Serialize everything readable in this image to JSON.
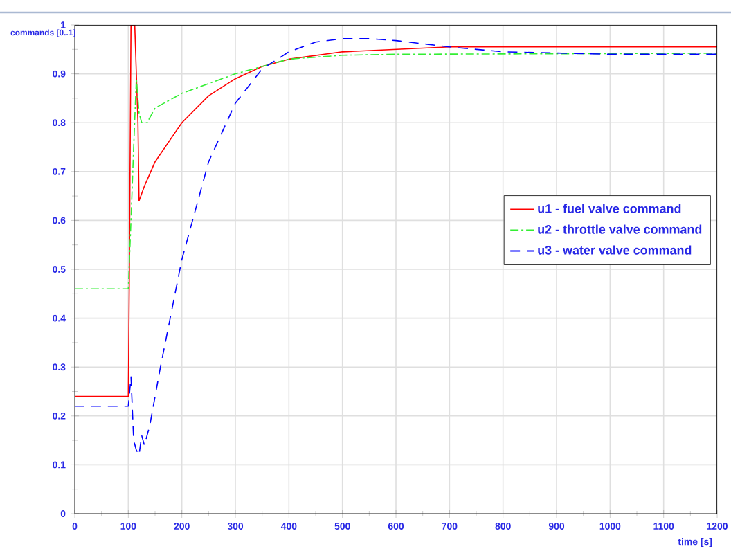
{
  "chart_data": {
    "type": "line",
    "xlabel": "time [s]",
    "ylabel": "commands [0..1]",
    "xlim": [
      0,
      1200
    ],
    "ylim": [
      0,
      1
    ],
    "xticks": [
      0,
      100,
      200,
      300,
      400,
      500,
      600,
      700,
      800,
      900,
      1000,
      1100,
      1200
    ],
    "yticks": [
      0,
      0.1,
      0.2,
      0.3,
      0.4,
      0.5,
      0.6,
      0.7,
      0.8,
      0.9,
      1
    ],
    "grid": true,
    "legend": "right",
    "series": [
      {
        "name": "u1 - fuel valve command",
        "color": "#ff0000",
        "line_style": "solid",
        "x": [
          0,
          100,
          102,
          105,
          112,
          118,
          120,
          130,
          150,
          200,
          250,
          300,
          350,
          400,
          500,
          600,
          700,
          1200
        ],
        "values": [
          0.24,
          0.24,
          0.5,
          1.0,
          1.0,
          0.8,
          0.64,
          0.67,
          0.72,
          0.8,
          0.855,
          0.89,
          0.915,
          0.93,
          0.945,
          0.95,
          0.955,
          0.955
        ]
      },
      {
        "name": "u2 - throttle valve command",
        "color": "#33ee33",
        "line_style": "dashdot",
        "x": [
          0,
          100,
          105,
          110,
          115,
          120,
          125,
          135,
          150,
          200,
          300,
          400,
          500,
          600,
          1200
        ],
        "values": [
          0.46,
          0.46,
          0.6,
          0.75,
          0.89,
          0.82,
          0.8,
          0.8,
          0.83,
          0.86,
          0.9,
          0.93,
          0.938,
          0.94,
          0.942
        ]
      },
      {
        "name": "u3 - water valve command",
        "color": "#0000ff",
        "line_style": "dashed",
        "x": [
          0,
          100,
          105,
          110,
          115,
          120,
          125,
          130,
          140,
          160,
          200,
          250,
          300,
          350,
          400,
          450,
          500,
          550,
          600,
          700,
          800,
          1000,
          1200
        ],
        "values": [
          0.22,
          0.22,
          0.28,
          0.15,
          0.13,
          0.12,
          0.16,
          0.14,
          0.18,
          0.3,
          0.52,
          0.72,
          0.84,
          0.91,
          0.945,
          0.965,
          0.972,
          0.972,
          0.968,
          0.955,
          0.945,
          0.94,
          0.94
        ]
      }
    ]
  }
}
